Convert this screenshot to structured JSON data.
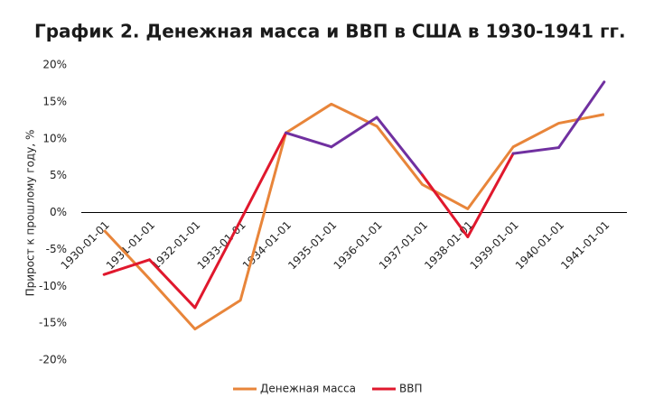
{
  "chart_data": {
    "type": "line",
    "title": "График 2. Денежная масса и ВВП в США в 1930-1941 гг.",
    "y_label": "Прирост к прошлому году, %",
    "categories": [
      "1930-01-01",
      "1931-01-01",
      "1932-01-01",
      "1933-01-01",
      "1934-01-01",
      "1935-01-01",
      "1936-01-01",
      "1937-01-01",
      "1938-01-01",
      "1939-01-01",
      "1940-01-01",
      "1941-01-01"
    ],
    "series": [
      {
        "name": "Денежная масса",
        "color": "#e8853a",
        "values": [
          -2.4,
          -9.0,
          -15.8,
          -11.9,
          10.8,
          14.7,
          11.7,
          3.8,
          0.5,
          8.9,
          12.1,
          13.3
        ]
      },
      {
        "name": "ВВП",
        "color": "#e0182d",
        "positive_color": "#7030a0",
        "values": [
          -8.4,
          -6.4,
          -12.9,
          -1.1,
          10.8,
          8.9,
          12.9,
          5.1,
          -3.3,
          8.0,
          8.8,
          17.7
        ]
      }
    ],
    "ylim": [
      -20,
      20
    ],
    "yticks": [
      {
        "value": -20,
        "label": "-20%"
      },
      {
        "value": -15,
        "label": "-15%"
      },
      {
        "value": -10,
        "label": "-10%"
      },
      {
        "value": -5,
        "label": "-5%"
      },
      {
        "value": 0,
        "label": "0%"
      },
      {
        "value": 5,
        "label": "5%"
      },
      {
        "value": 10,
        "label": "10%"
      },
      {
        "value": 15,
        "label": "15%"
      },
      {
        "value": 20,
        "label": "20%"
      }
    ],
    "legend": "bottom"
  }
}
